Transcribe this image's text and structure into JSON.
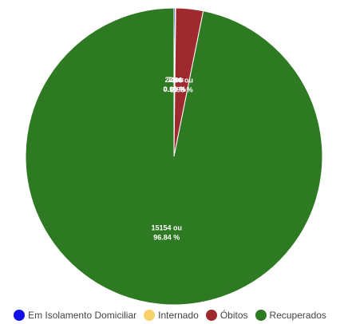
{
  "chart_data": {
    "type": "pie",
    "slices": [
      {
        "name": "Em Isolamento Domiciliar",
        "value": 22,
        "label_value": "22 ou",
        "label_percent": "0.14 %",
        "color": "#1010e8"
      },
      {
        "name": "Internado",
        "value": 7,
        "label_value": "7 ou",
        "label_percent": "0.04 %",
        "color": "#f9d16a"
      },
      {
        "name": "Óbitos",
        "value": 466,
        "label_value": "466 ou",
        "label_percent": "2.98 %",
        "color": "#9e2a2f"
      },
      {
        "name": "Recuperados",
        "value": 15154,
        "label_value": "15154 ou",
        "label_percent": "96.84 %",
        "color": "#2e7a22"
      }
    ],
    "legend_position": "bottom"
  }
}
